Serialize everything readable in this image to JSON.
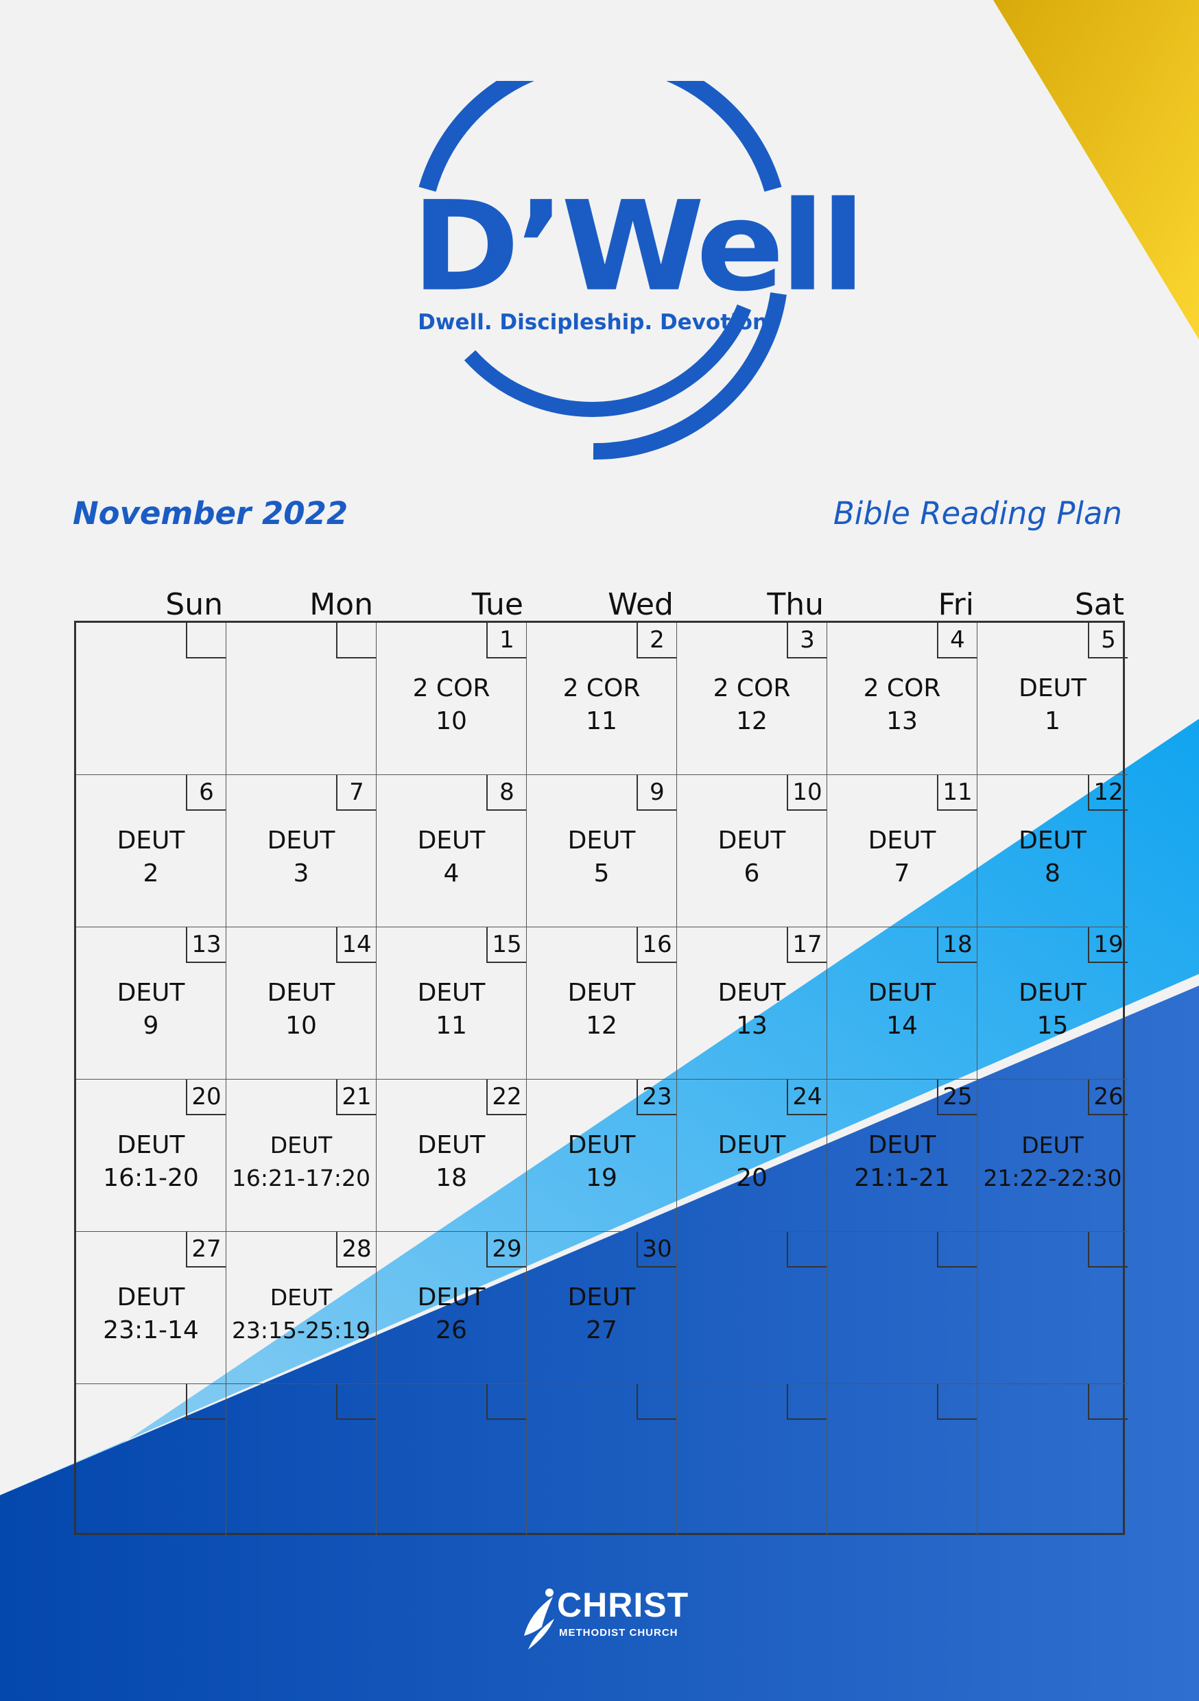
{
  "colors": {
    "background": "#f2f2f2",
    "brand_blue": "#1a5cc4",
    "light_blue": "#17a3f0",
    "dark_blue": "#0a47ad",
    "gold": "#f5c521"
  },
  "logo": {
    "title": "D’Well",
    "tagline": "Dwell.  Discipleship.  Devotion."
  },
  "header": {
    "month": "November 2022",
    "plan": "Bible Reading Plan"
  },
  "calendar": {
    "days": [
      "Sun",
      "Mon",
      "Tue",
      "Wed",
      "Thu",
      "Fri",
      "Sat"
    ],
    "weeks": [
      [
        {
          "date": "",
          "book": "",
          "ref": ""
        },
        {
          "date": "",
          "book": "",
          "ref": ""
        },
        {
          "date": "1",
          "book": "2 COR",
          "ref": "10"
        },
        {
          "date": "2",
          "book": "2 COR",
          "ref": "11"
        },
        {
          "date": "3",
          "book": "2 COR",
          "ref": "12"
        },
        {
          "date": "4",
          "book": "2 COR",
          "ref": "13"
        },
        {
          "date": "5",
          "book": "DEUT",
          "ref": "1"
        }
      ],
      [
        {
          "date": "6",
          "book": "DEUT",
          "ref": "2"
        },
        {
          "date": "7",
          "book": "DEUT",
          "ref": "3"
        },
        {
          "date": "8",
          "book": "DEUT",
          "ref": "4"
        },
        {
          "date": "9",
          "book": "DEUT",
          "ref": "5"
        },
        {
          "date": "10",
          "book": "DEUT",
          "ref": "6"
        },
        {
          "date": "11",
          "book": "DEUT",
          "ref": "7"
        },
        {
          "date": "12",
          "book": "DEUT",
          "ref": "8"
        }
      ],
      [
        {
          "date": "13",
          "book": "DEUT",
          "ref": "9"
        },
        {
          "date": "14",
          "book": "DEUT",
          "ref": "10"
        },
        {
          "date": "15",
          "book": "DEUT",
          "ref": "11"
        },
        {
          "date": "16",
          "book": "DEUT",
          "ref": "12"
        },
        {
          "date": "17",
          "book": "DEUT",
          "ref": "13"
        },
        {
          "date": "18",
          "book": "DEUT",
          "ref": "14"
        },
        {
          "date": "19",
          "book": "DEUT",
          "ref": "15"
        }
      ],
      [
        {
          "date": "20",
          "book": "DEUT",
          "ref": "16:1-20"
        },
        {
          "date": "21",
          "book": "DEUT",
          "ref": "16:21-17:20"
        },
        {
          "date": "22",
          "book": "DEUT",
          "ref": "18"
        },
        {
          "date": "23",
          "book": "DEUT",
          "ref": "19"
        },
        {
          "date": "24",
          "book": "DEUT",
          "ref": "20"
        },
        {
          "date": "25",
          "book": "DEUT",
          "ref": "21:1-21"
        },
        {
          "date": "26",
          "book": "DEUT",
          "ref": "21:22-22:30"
        }
      ],
      [
        {
          "date": "27",
          "book": "DEUT",
          "ref": "23:1-14"
        },
        {
          "date": "28",
          "book": "DEUT",
          "ref": "23:15-25:19"
        },
        {
          "date": "29",
          "book": "DEUT",
          "ref": "26"
        },
        {
          "date": "30",
          "book": "DEUT",
          "ref": "27"
        },
        {
          "date": "",
          "book": "",
          "ref": ""
        },
        {
          "date": "",
          "book": "",
          "ref": ""
        },
        {
          "date": "",
          "book": "",
          "ref": ""
        }
      ],
      [
        {
          "date": "",
          "book": "",
          "ref": ""
        },
        {
          "date": "",
          "book": "",
          "ref": ""
        },
        {
          "date": "",
          "book": "",
          "ref": ""
        },
        {
          "date": "",
          "book": "",
          "ref": ""
        },
        {
          "date": "",
          "book": "",
          "ref": ""
        },
        {
          "date": "",
          "book": "",
          "ref": ""
        },
        {
          "date": "",
          "book": "",
          "ref": ""
        }
      ]
    ]
  },
  "footer": {
    "church_name": "CHRIST",
    "church_sub": "METHODIST CHURCH"
  }
}
